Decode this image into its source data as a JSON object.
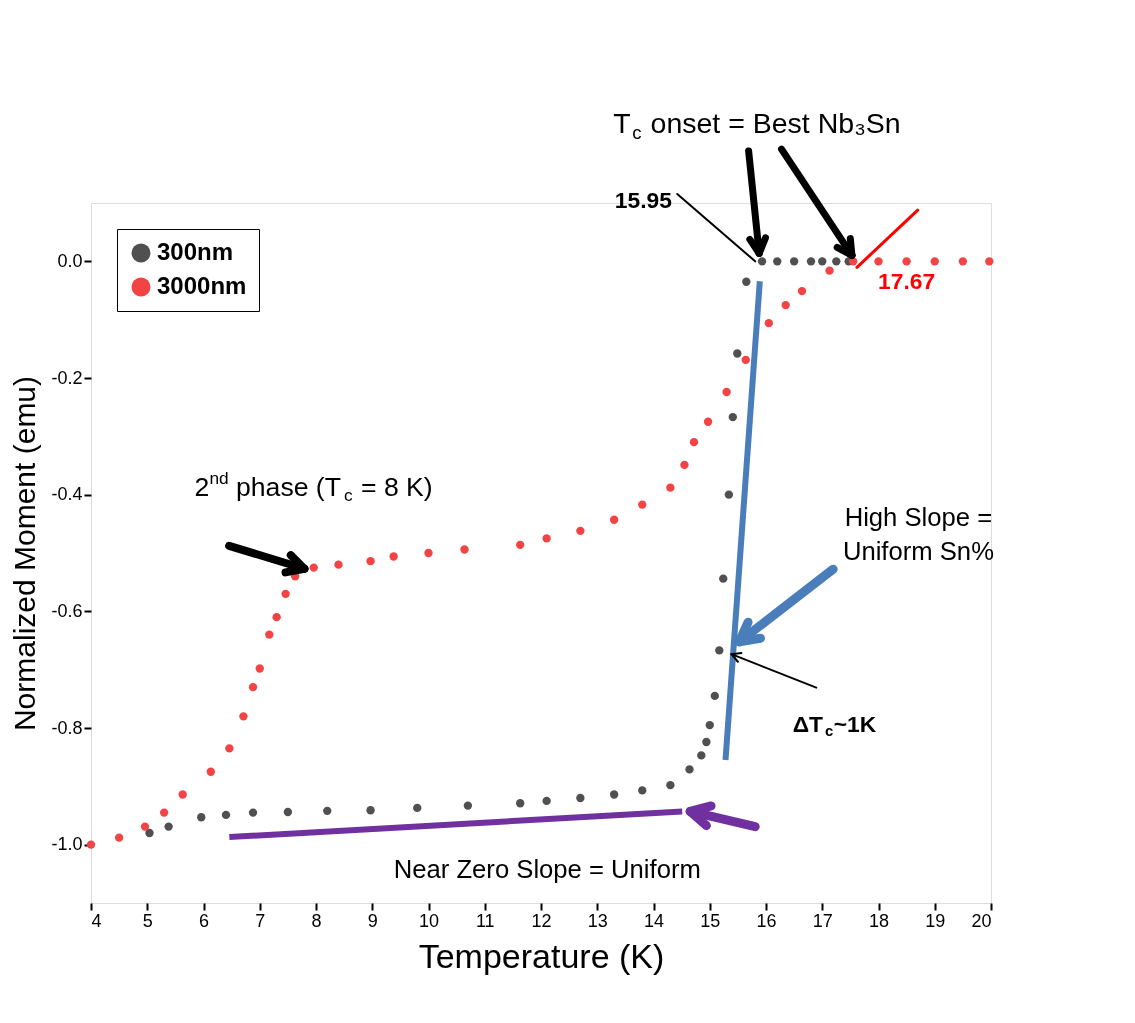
{
  "chart_data": {
    "type": "scatter",
    "xlabel": "Temperature (K)",
    "ylabel": "Normalized Moment (emu)",
    "xlim": [
      4,
      20
    ],
    "ylim": [
      -1.1,
      0.1
    ],
    "xticks": [
      4,
      5,
      6,
      7,
      8,
      9,
      10,
      11,
      12,
      13,
      14,
      15,
      16,
      17,
      18,
      19,
      20
    ],
    "yticks": [
      {
        "value": -1.0,
        "label": "-1.0"
      },
      {
        "value": -0.8,
        "label": "-0.8"
      },
      {
        "value": -0.6,
        "label": "-0.6"
      },
      {
        "value": -0.4,
        "label": "-0.4"
      },
      {
        "value": -0.2,
        "label": "-0.2"
      },
      {
        "value": 0.0,
        "label": "0.0"
      }
    ],
    "grid": false,
    "legend": "top left",
    "marker": "circle",
    "series": [
      {
        "name": "300nm",
        "color": "#505050",
        "x": [
          5.04,
          5.38,
          5.96,
          6.4,
          6.88,
          7.5,
          8.2,
          8.97,
          9.8,
          10.7,
          11.63,
          12.1,
          12.7,
          13.3,
          13.8,
          14.3,
          14.64,
          14.85,
          14.94,
          15.0,
          15.09,
          15.17,
          15.24,
          15.34,
          15.41,
          15.49,
          15.65,
          15.93,
          16.2,
          16.5,
          16.8,
          17.0,
          17.25,
          17.47
        ],
        "values": [
          -0.98,
          -0.969,
          -0.953,
          -0.949,
          -0.945,
          -0.944,
          -0.942,
          -0.941,
          -0.937,
          -0.933,
          -0.929,
          -0.925,
          -0.92,
          -0.914,
          -0.907,
          -0.898,
          -0.871,
          -0.847,
          -0.824,
          -0.795,
          -0.745,
          -0.667,
          -0.544,
          -0.4,
          -0.267,
          -0.158,
          -0.035,
          0.0,
          0.0,
          0.0,
          0.0,
          0.0,
          0.0,
          0.0
        ]
      },
      {
        "name": "3000nm",
        "color": "#f24444",
        "x": [
          4,
          4.5,
          4.96,
          5.3,
          5.63,
          6.13,
          6.46,
          6.71,
          6.88,
          7.0,
          7.17,
          7.3,
          7.46,
          7.63,
          7.96,
          8.4,
          8.97,
          9.38,
          10.0,
          10.64,
          11.63,
          12.1,
          12.7,
          13.3,
          13.8,
          14.3,
          14.55,
          14.72,
          14.97,
          15.3,
          15.64,
          16.05,
          16.35,
          16.64,
          17.13,
          17.55,
          18.0,
          18.5,
          19.0,
          19.5,
          19.97
        ],
        "values": [
          -1.0,
          -0.988,
          -0.969,
          -0.945,
          -0.914,
          -0.875,
          -0.835,
          -0.78,
          -0.73,
          -0.698,
          -0.64,
          -0.61,
          -0.57,
          -0.54,
          -0.525,
          -0.52,
          -0.514,
          -0.506,
          -0.5,
          -0.494,
          -0.486,
          -0.475,
          -0.462,
          -0.443,
          -0.417,
          -0.388,
          -0.349,
          -0.31,
          -0.275,
          -0.224,
          -0.169,
          -0.106,
          -0.075,
          -0.051,
          -0.016,
          0.0,
          0.0,
          0.0,
          0.0,
          0.0,
          0.0
        ]
      },
      {
        "type": "line",
        "color": "#4a7ebb",
        "marker": "none",
        "x": [
          15.89,
          15.28
        ],
        "values": [
          -0.034,
          -0.855
        ]
      },
      {
        "type": "line",
        "color": "#7030a0",
        "marker": "none",
        "x": [
          6.46,
          14.51
        ],
        "values": [
          -0.987,
          -0.943
        ]
      }
    ],
    "annotations": [
      "T$_{c}$ onset = Best Nb₃Sn",
      {
        "text": "15.95",
        "x": 15.95,
        "y": 0.0
      },
      {
        "text": "17.67",
        "x": 17.67,
        "y": 0.0
      },
      {
        "text": "2$^{nd}$ phase (T$_{c}$ = 8 K)",
        "x": 7.9,
        "y": -0.527
      },
      "High Slope =\nUniform Sn%",
      {
        "text": "ΔT$_{c}$~1K",
        "x": 15.35,
        "y": -0.67
      },
      {
        "text": "Near Zero Slope = Uniform",
        "x": 14.51,
        "y": -0.943
      }
    ]
  }
}
